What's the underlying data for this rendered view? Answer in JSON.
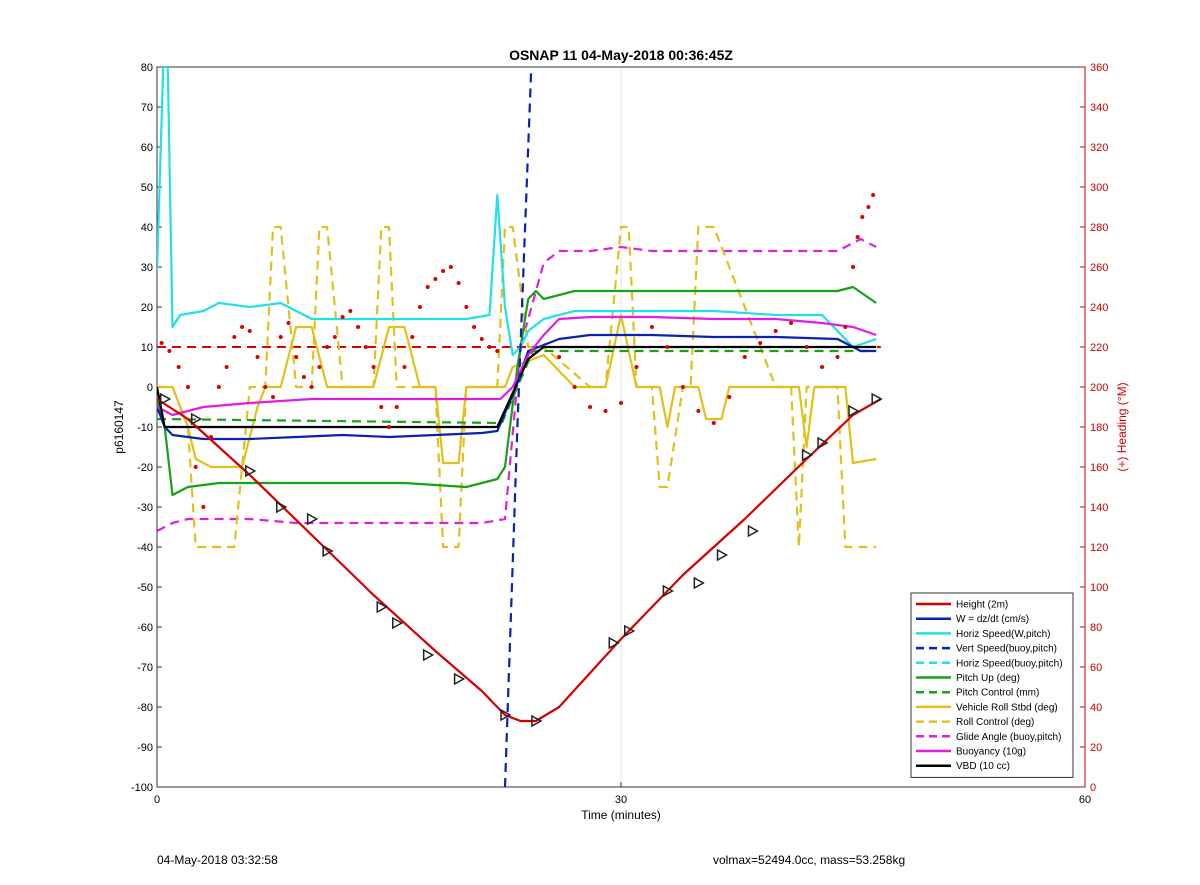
{
  "chart_data": {
    "type": "line",
    "title": "OSNAP 11 04-May-2018 00:36:45Z",
    "xlabel": "Time (minutes)",
    "ylabel_left": "p6160147",
    "ylabel_right": "(+) Heading (°M)",
    "xlim": [
      0,
      60
    ],
    "ylim_left": [
      -100,
      80
    ],
    "ylim_right": [
      0,
      360
    ],
    "x_ticks": [
      0,
      30,
      60
    ],
    "y_ticks_left": [
      80,
      70,
      60,
      50,
      40,
      30,
      20,
      10,
      0,
      -10,
      -20,
      -30,
      -40,
      -50,
      -60,
      -70,
      -80,
      -90,
      -100
    ],
    "y_ticks_right": [
      360,
      340,
      320,
      300,
      280,
      260,
      240,
      220,
      200,
      180,
      160,
      140,
      120,
      100,
      80,
      60,
      40,
      20,
      0
    ],
    "grid": "x-major",
    "legend_position": "bottom-right",
    "series": [
      {
        "name": "Height (2m)",
        "color": "#d40000",
        "style": "solid",
        "x": [
          0,
          2,
          6,
          10,
          14,
          18,
          21,
          22.5,
          23.5,
          24.5,
          26,
          30,
          34,
          38,
          42,
          45,
          46.8
        ],
        "y": [
          -3,
          -8,
          -22,
          -37,
          -52,
          -66,
          -76,
          -82,
          -83.5,
          -83.5,
          -80,
          -63,
          -47,
          -33,
          -18,
          -7,
          -3
        ]
      },
      {
        "name": "W = dz/dt (cm/s)",
        "color": "#0a22b0",
        "style": "solid",
        "x": [
          0,
          0.5,
          1,
          3,
          6,
          9,
          12,
          15,
          18,
          21,
          22,
          23,
          24,
          26,
          28,
          32,
          36,
          40,
          44,
          45.5,
          46.5
        ],
        "y": [
          -5,
          -10,
          -12,
          -13,
          -13,
          -12.5,
          -12,
          -12.5,
          -12,
          -11.5,
          -11,
          -2,
          9,
          12,
          13,
          13,
          12.5,
          12.5,
          12,
          9,
          9
        ]
      },
      {
        "name": "Horiz Speed(W,pitch)",
        "color": "#22e0e8",
        "style": "solid",
        "x": [
          0,
          0.4,
          0.7,
          1,
          1.5,
          3,
          4,
          6,
          8,
          10,
          12,
          14,
          16,
          18,
          20,
          21.5,
          22,
          22.5,
          23,
          23.5,
          24,
          25,
          27,
          30,
          33,
          36,
          40,
          43,
          45,
          46.5
        ],
        "y": [
          29,
          80,
          80,
          15,
          18,
          19,
          21,
          20,
          21,
          17,
          17,
          17,
          17,
          17,
          17,
          18,
          48,
          20,
          8,
          10,
          14,
          17,
          19,
          19,
          19,
          19,
          18,
          18,
          10,
          12
        ]
      },
      {
        "name": "Vert Speed(buoy,pitch)",
        "color": "#0a22b0",
        "style": "dashed",
        "x": [
          22.5,
          23.3,
          23.8,
          24.2
        ],
        "y": [
          -100,
          -10,
          40,
          80
        ]
      },
      {
        "name": "Horiz Speed(buoy,pitch)",
        "color": "#22e0e8",
        "style": "dashed",
        "x": [],
        "y": []
      },
      {
        "name": "Pitch Up (deg)",
        "color": "#18a018",
        "style": "solid",
        "x": [
          0,
          0.5,
          1,
          2,
          4,
          6,
          8,
          10,
          12,
          16,
          20,
          22,
          22.5,
          23.3,
          24,
          24.5,
          25,
          27,
          30,
          33,
          36,
          40,
          44,
          45,
          46.5
        ],
        "y": [
          -3,
          -10,
          -27,
          -25,
          -24,
          -24,
          -24,
          -24,
          -24,
          -24,
          -25,
          -23,
          -20,
          5,
          22,
          24,
          22,
          24,
          24,
          24,
          24,
          24,
          24,
          25,
          21
        ]
      },
      {
        "name": "Pitch Control (mm)",
        "color": "#18a018",
        "style": "dashed",
        "x": [
          0,
          22.3,
          24.3,
          46.5
        ],
        "y": [
          -8,
          -9,
          9,
          9
        ]
      },
      {
        "name": "Vehicle Roll Stbd (deg)",
        "color": "#e2c01c",
        "style": "solid",
        "x": [
          0,
          1,
          2,
          2.5,
          3.5,
          5.5,
          6.5,
          7,
          8,
          9,
          10,
          11,
          12,
          14,
          15,
          16,
          17,
          18,
          18.5,
          19.5,
          20,
          22.5,
          23,
          25,
          27,
          29,
          30,
          31,
          32.5,
          33,
          33.5,
          35,
          35.5,
          36.5,
          37,
          40,
          41.5,
          42,
          42.5,
          44.5,
          45,
          46.5
        ],
        "y": [
          0,
          0,
          -10,
          -18,
          -20,
          -20,
          -5,
          0,
          0,
          15,
          15,
          0,
          0,
          0,
          15,
          15,
          0,
          0,
          -19,
          -19,
          0,
          0,
          5,
          8,
          0,
          0,
          18,
          0,
          0,
          -10,
          0,
          0,
          -8,
          -8,
          0,
          0,
          0,
          -15,
          0,
          0,
          -19,
          -18
        ]
      },
      {
        "name": "Roll Control (deg)",
        "color": "#e2c01c",
        "style": "dashed",
        "x": [
          0,
          1,
          2,
          2.5,
          3,
          4,
          5,
          5.5,
          6,
          7,
          7.5,
          8,
          9,
          10,
          10.5,
          11,
          12,
          14,
          14.5,
          15,
          15.5,
          16,
          17,
          18,
          18.5,
          19,
          19.5,
          20,
          22,
          22.5,
          23,
          24,
          25,
          28,
          29,
          30,
          30.5,
          31,
          32,
          32.5,
          33,
          34,
          34.5,
          35,
          36,
          40,
          41,
          41.5,
          42,
          44,
          44.5,
          45,
          46.5
        ],
        "y": [
          0,
          0,
          -10,
          -40,
          -40,
          -40,
          -40,
          -20,
          0,
          0,
          40,
          40,
          0,
          0,
          40,
          40,
          0,
          0,
          40,
          40,
          0,
          0,
          0,
          0,
          -40,
          -40,
          -40,
          0,
          0,
          40,
          40,
          10,
          10,
          0,
          0,
          40,
          40,
          0,
          0,
          -25,
          -25,
          0,
          0,
          40,
          40,
          0,
          0,
          -40,
          0,
          0,
          -40,
          -40,
          -40
        ]
      },
      {
        "name": "Glide Angle (buoy,pitch)",
        "color": "#e01ee0",
        "style": "dashed",
        "x": [
          0,
          1,
          2,
          4,
          6,
          9,
          12,
          15,
          18,
          21,
          22.5,
          23.5,
          25,
          26,
          28,
          30,
          32,
          35,
          38,
          42,
          44,
          45.5,
          46.5
        ],
        "y": [
          -36,
          -34,
          -33,
          -33,
          -33,
          -34,
          -34,
          -34,
          -34,
          -34,
          -33,
          10,
          31,
          34,
          34,
          35,
          34,
          34,
          34,
          34,
          34,
          37,
          35
        ]
      },
      {
        "name": "Buoyancy (10g)",
        "color": "#e01ee0",
        "style": "solid",
        "x": [
          0,
          1,
          3,
          6,
          10,
          14,
          18,
          22.2,
          23,
          24,
          25,
          26,
          28,
          32,
          36,
          40,
          43,
          45,
          46.5
        ],
        "y": [
          -5,
          -7,
          -5,
          -4,
          -3,
          -3,
          -3,
          -3,
          0,
          8,
          13,
          17,
          17.5,
          17.5,
          17,
          17,
          16,
          15,
          13
        ]
      },
      {
        "name": "VBD (10 cc)",
        "color": "#000000",
        "style": "solid",
        "x": [
          0,
          0.5,
          22,
          24,
          25,
          46.5
        ],
        "y": [
          0,
          -10,
          -10,
          7,
          10,
          10
        ]
      }
    ],
    "heading_points": {
      "name": "Heading",
      "color": "#dd0000",
      "axis": "right",
      "x": [
        0.3,
        0.8,
        1.4,
        2,
        2.5,
        3,
        3.5,
        4,
        4.5,
        5,
        5.5,
        6,
        6.5,
        7,
        7.5,
        8,
        8.5,
        9,
        9.5,
        10,
        10.5,
        11,
        11.5,
        12,
        12.5,
        13,
        13.5,
        14,
        14.5,
        15,
        15.5,
        16,
        16.5,
        17,
        17.5,
        18,
        18.5,
        19,
        19.5,
        20,
        20.5,
        21,
        21.5,
        22,
        26,
        27,
        28,
        29,
        30,
        31,
        32,
        33,
        34,
        35,
        36,
        37,
        38,
        39,
        40,
        41,
        42,
        43,
        44,
        44.5,
        45,
        45.3,
        45.6,
        46,
        46.3
      ],
      "y": [
        222,
        218,
        210,
        200,
        160,
        140,
        175,
        200,
        210,
        225,
        230,
        228,
        215,
        200,
        195,
        225,
        232,
        215,
        205,
        200,
        210,
        220,
        225,
        235,
        238,
        230,
        220,
        210,
        190,
        180,
        190,
        210,
        225,
        240,
        250,
        254,
        258,
        260,
        252,
        240,
        230,
        224,
        220,
        218,
        215,
        200,
        190,
        188,
        192,
        210,
        230,
        220,
        200,
        188,
        182,
        195,
        215,
        222,
        228,
        232,
        220,
        210,
        215,
        230,
        260,
        275,
        285,
        290,
        296
      ]
    },
    "markers": {
      "name": "triangles on Height",
      "x": [
        0.5,
        2.5,
        6,
        8,
        10,
        11,
        14.5,
        15.5,
        17.5,
        19.5,
        22.5,
        24.5,
        29.5,
        30.5,
        33,
        35,
        36.5,
        38.5,
        42,
        43,
        45,
        46.5
      ],
      "y": [
        -3,
        -8,
        -21,
        -30,
        -33,
        -41,
        -55,
        -59,
        -67,
        -73,
        -82,
        -83.5,
        -64,
        -61,
        -51,
        -49,
        -42,
        -36,
        -17,
        -14,
        -6,
        -3
      ]
    }
  },
  "footer": {
    "left": "04-May-2018 03:32:58",
    "right": "volmax=52494.0cc, mass=53.258kg"
  }
}
